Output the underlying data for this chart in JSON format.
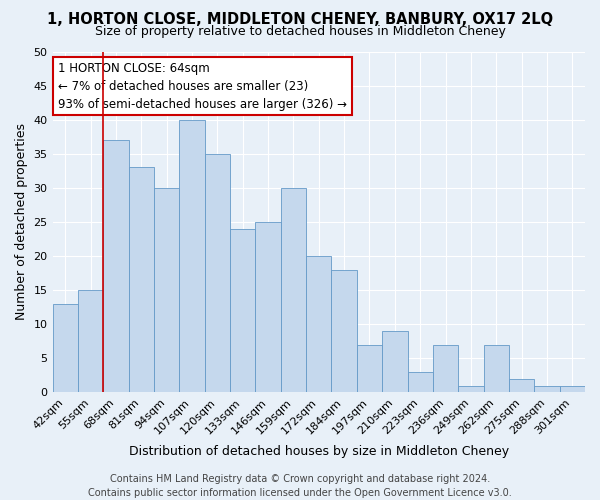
{
  "title": "1, HORTON CLOSE, MIDDLETON CHENEY, BANBURY, OX17 2LQ",
  "subtitle": "Size of property relative to detached houses in Middleton Cheney",
  "xlabel": "Distribution of detached houses by size in Middleton Cheney",
  "ylabel": "Number of detached properties",
  "categories": [
    "42sqm",
    "55sqm",
    "68sqm",
    "81sqm",
    "94sqm",
    "107sqm",
    "120sqm",
    "133sqm",
    "146sqm",
    "159sqm",
    "172sqm",
    "184sqm",
    "197sqm",
    "210sqm",
    "223sqm",
    "236sqm",
    "249sqm",
    "262sqm",
    "275sqm",
    "288sqm",
    "301sqm"
  ],
  "values": [
    13,
    15,
    37,
    33,
    30,
    40,
    35,
    24,
    25,
    30,
    20,
    18,
    7,
    9,
    3,
    7,
    1,
    7,
    2,
    1,
    1
  ],
  "bar_color": "#c5d8ed",
  "bar_edge_color": "#6499c8",
  "ylim": [
    0,
    50
  ],
  "yticks": [
    0,
    5,
    10,
    15,
    20,
    25,
    30,
    35,
    40,
    45,
    50
  ],
  "annotation_text": "1 HORTON CLOSE: 64sqm\n← 7% of detached houses are smaller (23)\n93% of semi-detached houses are larger (326) →",
  "annotation_box_color": "#ffffff",
  "annotation_box_edge": "#cc0000",
  "footer1": "Contains HM Land Registry data © Crown copyright and database right 2024.",
  "footer2": "Contains public sector information licensed under the Open Government Licence v3.0.",
  "bg_color": "#e8f0f8",
  "grid_color": "#ffffff",
  "title_fontsize": 10.5,
  "subtitle_fontsize": 9,
  "xlabel_fontsize": 9,
  "ylabel_fontsize": 9,
  "tick_fontsize": 8,
  "annot_fontsize": 8.5,
  "footer_fontsize": 7
}
